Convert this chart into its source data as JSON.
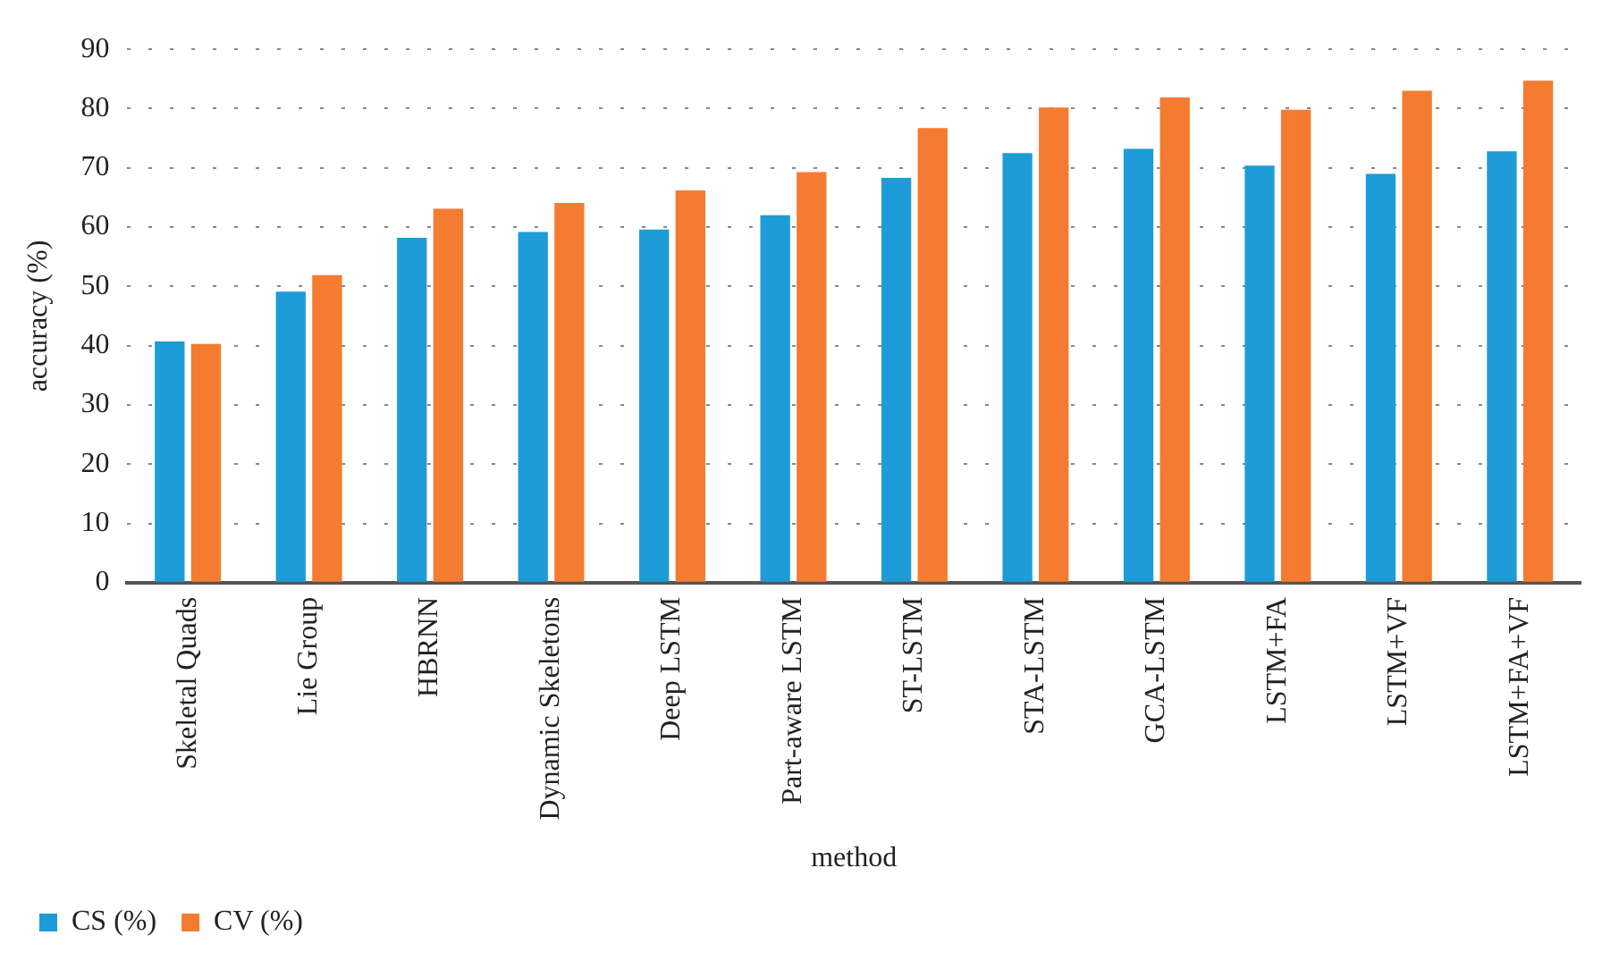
{
  "chart_data": {
    "type": "bar",
    "xlabel": "method",
    "ylabel": "accuracy (%)",
    "categories": [
      "Skeletal Quads",
      "Lie Group",
      "HBRNN",
      "Dynamic Skeletons",
      "Deep LSTM",
      "Part-aware LSTM",
      "ST-LSTM",
      "STA-LSTM",
      "GCA-LSTM",
      "LSTM+FA",
      "LSTM+VF",
      "LSTM+FA+VF"
    ],
    "series": [
      {
        "name": "CS (%)",
        "color": "#1e9cd7",
        "values": [
          40.7,
          49.1,
          58.2,
          59.2,
          59.6,
          62.0,
          68.3,
          72.5,
          73.2,
          70.4,
          69.0,
          72.8
        ]
      },
      {
        "name": "CV (%)",
        "color": "#f47b30",
        "values": [
          40.3,
          51.9,
          63.1,
          64.1,
          66.2,
          69.3,
          76.7,
          80.2,
          81.9,
          79.8,
          83.0,
          84.7
        ]
      }
    ],
    "ylim": [
      0,
      90
    ],
    "yticks": [
      0,
      10,
      20,
      30,
      40,
      50,
      60,
      70,
      80,
      90
    ],
    "grid": "y",
    "legend": "bottom left"
  }
}
